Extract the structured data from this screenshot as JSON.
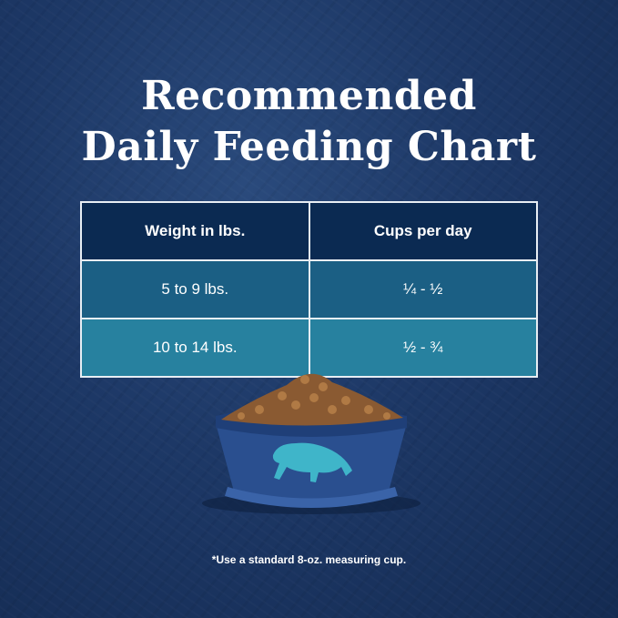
{
  "title_line1": "Recommended",
  "title_line2": "Daily Feeding Chart",
  "table": {
    "headers": [
      "Weight in lbs.",
      "Cups per day"
    ],
    "rows": [
      [
        "5 to 9 lbs.",
        "¼ - ½"
      ],
      [
        "10 to 14 lbs.",
        "½ - ¾"
      ]
    ]
  },
  "footnote": "*Use a standard 8-oz. measuring cup.",
  "colors": {
    "background": "#1d3866",
    "header": "#0b2a52",
    "row1": "#1b5f84",
    "row2": "#27819f",
    "bowl": "#2a4f8f",
    "logo": "#3fb5c9"
  },
  "icons": {
    "bowl": "food-bowl-with-kibble",
    "logo": "bison-icon"
  }
}
